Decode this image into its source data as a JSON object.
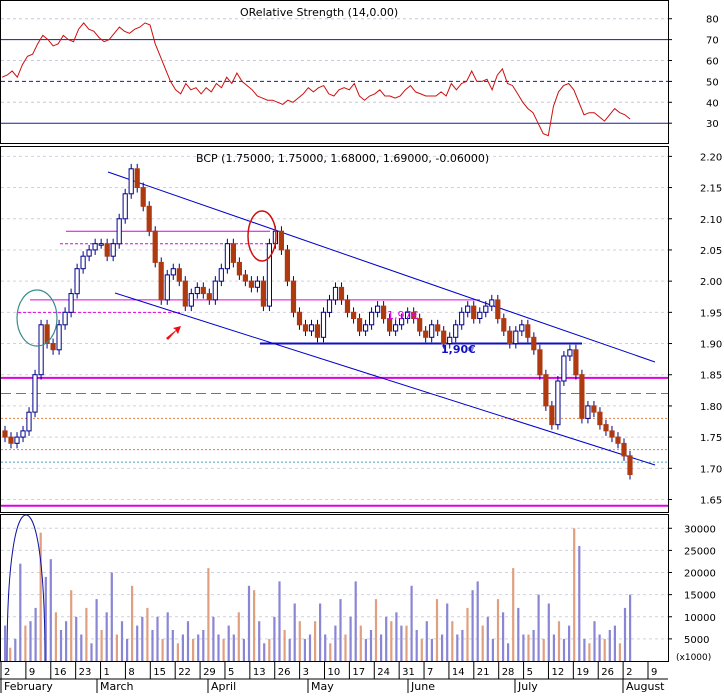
{
  "chart_data": [
    {
      "type": "line",
      "title": "ORelative Strength (14,0.00)",
      "yticks": [
        30,
        40,
        50,
        60,
        70,
        80
      ],
      "ylim": [
        21,
        88
      ],
      "reference_lines": [
        70,
        50,
        30
      ],
      "series": [
        {
          "values": [
            52,
            53,
            55,
            52,
            58,
            62,
            63,
            68,
            72,
            70,
            67,
            68,
            72,
            70,
            69,
            75,
            78,
            75,
            74,
            71,
            69,
            70,
            73,
            76,
            74,
            73,
            75,
            76,
            78,
            77,
            68,
            62,
            56,
            50,
            46,
            44,
            49,
            46,
            47,
            44,
            47,
            45,
            49,
            47,
            52,
            49,
            54,
            50,
            48,
            46,
            43,
            42,
            41,
            41,
            40,
            39,
            41,
            40,
            42,
            44,
            47,
            45,
            47,
            48,
            44,
            43,
            46,
            47,
            46,
            49,
            43,
            41,
            43,
            44,
            46,
            43,
            43,
            42,
            43,
            46,
            48,
            45,
            44,
            43,
            43,
            43,
            45,
            43,
            49,
            46,
            49,
            50,
            55,
            50,
            50,
            51,
            46,
            53,
            56,
            49,
            48,
            44,
            40,
            37,
            35,
            30,
            25,
            24,
            38,
            45,
            48,
            49,
            46,
            40,
            34,
            35,
            35,
            33,
            31,
            34,
            37,
            35,
            34,
            32
          ]
        }
      ]
    },
    {
      "type": "candlestick",
      "title": "BCP (1.75000, 1.75000, 1.68000, 1.69000, -0.06000)",
      "yticks": [
        "1.65",
        "1.70",
        "1.75",
        "1.80",
        "1.85",
        "1.90",
        "1.95",
        "2.00",
        "2.05",
        "2.10",
        "2.15",
        "2.20"
      ],
      "ylim": [
        1.63,
        2.215
      ],
      "closes": [
        1.75,
        1.74,
        1.75,
        1.76,
        1.79,
        1.85,
        1.93,
        1.9,
        1.89,
        1.93,
        1.95,
        1.98,
        2.02,
        2.04,
        2.05,
        2.06,
        2.06,
        2.04,
        2.06,
        2.1,
        2.14,
        2.18,
        2.15,
        2.12,
        2.08,
        2.03,
        1.97,
        2.01,
        2.02,
        2.0,
        1.96,
        1.98,
        1.99,
        1.98,
        1.97,
        2.0,
        2.02,
        2.06,
        2.03,
        2.01,
        2.0,
        1.99,
        2.0,
        1.96,
        2.06,
        2.08,
        2.05,
        2.0,
        1.95,
        1.93,
        1.92,
        1.93,
        1.91,
        1.95,
        1.97,
        1.99,
        1.97,
        1.95,
        1.94,
        1.92,
        1.93,
        1.95,
        1.96,
        1.94,
        1.92,
        1.93,
        1.94,
        1.95,
        1.94,
        1.92,
        1.91,
        1.93,
        1.92,
        1.9,
        1.91,
        1.93,
        1.95,
        1.96,
        1.94,
        1.95,
        1.96,
        1.97,
        1.94,
        1.92,
        1.9,
        1.92,
        1.93,
        1.91,
        1.89,
        1.85,
        1.8,
        1.77,
        1.84,
        1.88,
        1.89,
        1.85,
        1.78,
        1.8,
        1.79,
        1.77,
        1.76,
        1.75,
        1.74,
        1.72,
        1.69
      ],
      "annotations": [
        "1,97€",
        "1,90€"
      ],
      "horizontal_levels": [
        2.08,
        2.06,
        1.97,
        1.95,
        1.9,
        1.845,
        1.82,
        1.78,
        1.73,
        1.71,
        1.64
      ]
    },
    {
      "type": "bar",
      "title": "Volume",
      "yticks": [
        "5000",
        "10000",
        "15000",
        "20000",
        "25000",
        "30000"
      ],
      "ylim": [
        0,
        33000
      ],
      "unit_label": "(x1000)",
      "values": [
        8000,
        3000,
        5000,
        22000,
        8000,
        9000,
        12000,
        29000,
        19000,
        23000,
        11000,
        7000,
        9000,
        16000,
        10000,
        6000,
        12000,
        4000,
        14000,
        7000,
        11000,
        20000,
        6000,
        9000,
        5000,
        17000,
        8000,
        10000,
        12000,
        7000,
        10000,
        5000,
        11000,
        7000,
        4000,
        6000,
        9000,
        5000,
        6000,
        7000,
        21000,
        10000,
        6000,
        5000,
        8000,
        6000,
        11000,
        5000,
        17000,
        16000,
        9000,
        4000,
        5000,
        10000,
        18000,
        7000,
        5000,
        13000,
        9000,
        5000,
        6000,
        9000,
        13000,
        6000,
        4000,
        8000,
        14000,
        6000,
        10000,
        18000,
        8000,
        5000,
        7000,
        14000,
        6000,
        10000,
        9000,
        11000,
        8000,
        8000,
        17000,
        7000,
        5000,
        9000,
        5000,
        14000,
        6000,
        13000,
        9000,
        6000,
        7000,
        12000,
        16000,
        18000,
        8000,
        10000,
        5000,
        14000,
        11000,
        4000,
        21000,
        12000,
        6000,
        6000,
        7000,
        15000,
        5000,
        13000,
        6000,
        9000,
        5000,
        8000,
        30000,
        26000,
        5000,
        4000,
        9000,
        6000,
        5000,
        7000,
        8000,
        4000,
        12000,
        15000
      ]
    }
  ],
  "xaxis": {
    "day_ticks": [
      "2",
      "9",
      "16",
      "23",
      "1",
      "8",
      "15",
      "22",
      "29",
      "5",
      "13",
      "26",
      "3",
      "10",
      "17",
      "24",
      "31",
      "7",
      "14",
      "21",
      "28",
      "5",
      "12",
      "19",
      "26",
      "2",
      "9"
    ],
    "months": [
      "February",
      "March",
      "April",
      "May",
      "June",
      "July",
      "August"
    ]
  },
  "colors": {
    "up": "#ffffff",
    "down": "#b03a10",
    "outline": "#00008b",
    "channel": "#0000cc",
    "magenta": "#e000e0",
    "volume_up": "#8a86d6",
    "volume_down": "#e0a080"
  }
}
